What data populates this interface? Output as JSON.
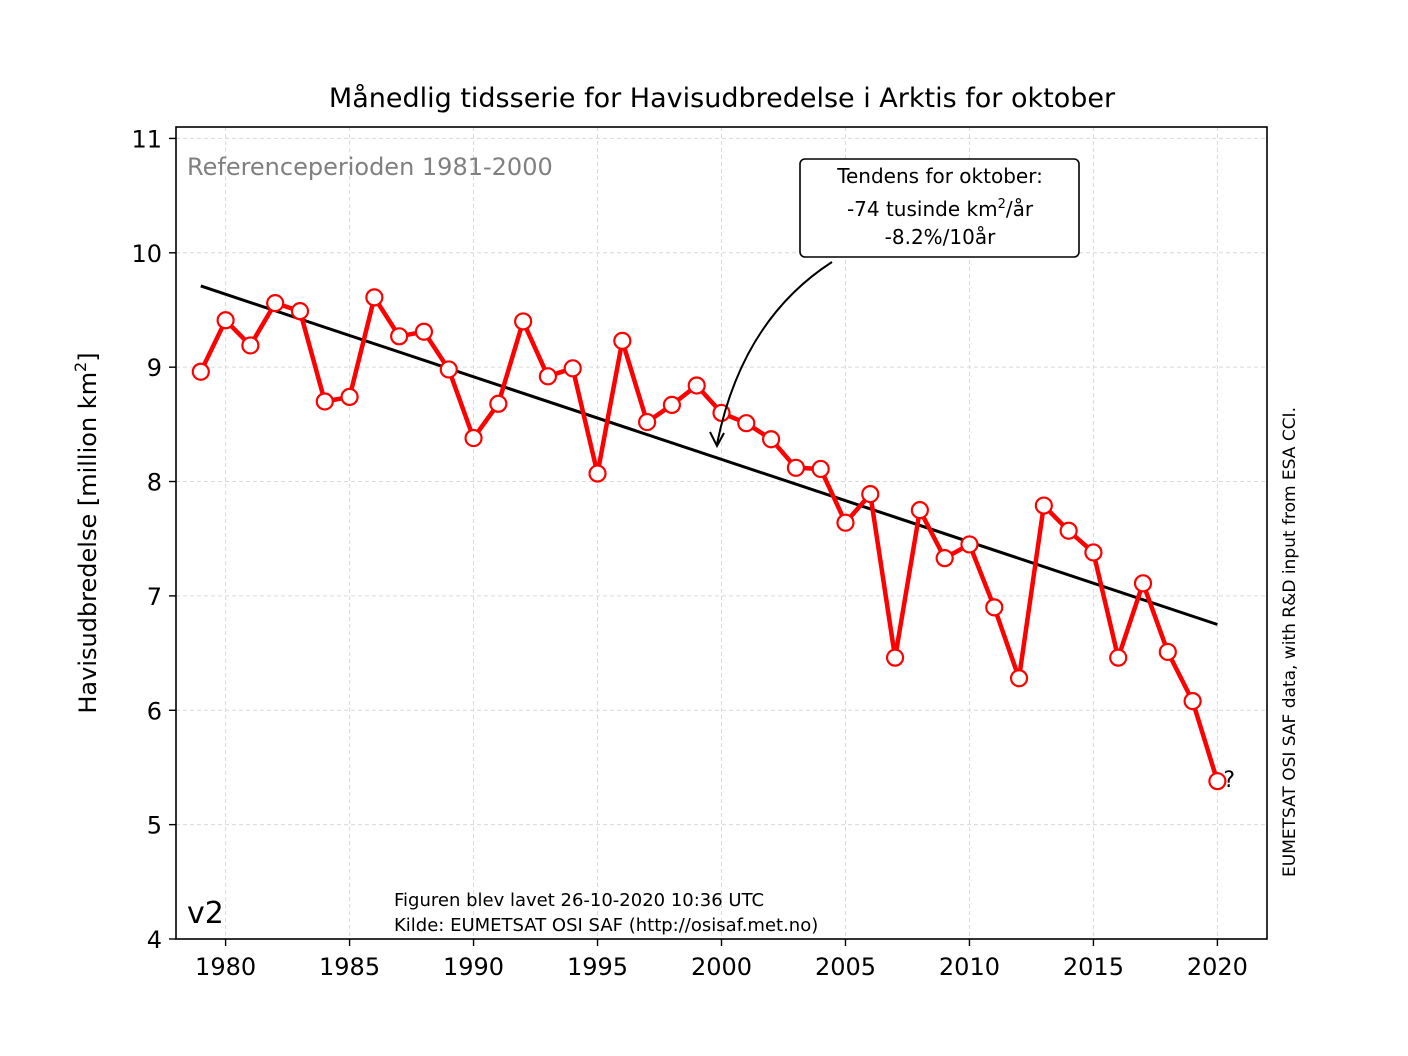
{
  "chart_data": {
    "type": "line",
    "title": "Månedlig tidsserie for Havisudbredelse i Arktis for oktober",
    "ylabel_main": "Havisudbredelse [million km",
    "ylabel_sup": "2",
    "ylabel_tail": "]",
    "xlim": [
      1978,
      2022
    ],
    "ylim": [
      4,
      11.1
    ],
    "x_ticks": [
      "1980",
      "1985",
      "1990",
      "1995",
      "2000",
      "2005",
      "2010",
      "2015",
      "2020"
    ],
    "y_ticks": [
      "4",
      "5",
      "6",
      "7",
      "8",
      "9",
      "10",
      "11"
    ],
    "grid": true,
    "series": [
      {
        "color": "#ff0000",
        "marker_fill": "#ffffff",
        "x": [
          1979,
          1980,
          1981,
          1982,
          1983,
          1984,
          1985,
          1986,
          1987,
          1988,
          1989,
          1990,
          1991,
          1992,
          1993,
          1994,
          1995,
          1996,
          1997,
          1998,
          1999,
          2000,
          2001,
          2002,
          2003,
          2004,
          2005,
          2006,
          2007,
          2008,
          2009,
          2010,
          2011,
          2012,
          2013,
          2014,
          2015,
          2016,
          2017,
          2018,
          2019,
          2020
        ],
        "y": [
          8.96,
          9.41,
          9.19,
          9.56,
          9.49,
          8.7,
          8.74,
          9.61,
          9.27,
          9.31,
          8.98,
          8.38,
          8.68,
          9.4,
          8.92,
          8.99,
          8.07,
          9.23,
          8.52,
          8.67,
          8.84,
          8.6,
          8.51,
          8.37,
          8.12,
          8.11,
          7.64,
          7.89,
          6.46,
          7.75,
          7.33,
          7.45,
          6.9,
          6.28,
          7.79,
          7.57,
          7.38,
          6.46,
          7.11,
          6.51,
          6.08,
          5.38
        ]
      }
    ],
    "trend": {
      "color": "#000000",
      "x": [
        1979,
        2020
      ],
      "y": [
        9.71,
        6.75
      ]
    },
    "last_point_marker": "?",
    "annotations": {
      "reference_period": "Referenceperioden 1981-2000",
      "trend_box_line1": "Tendens for oktober:",
      "trend_box_line2_pre": "-74 tusinde km",
      "trend_box_line2_sup": "2",
      "trend_box_line2_post": "/år",
      "trend_box_line3": "-8.2%/10år",
      "version": "v2",
      "made_line": "Figuren blev lavet 26-10-2020 10:36 UTC",
      "source_line": "Kilde: EUMETSAT OSI SAF (http://osisaf.met.no)",
      "side_credit": "EUMETSAT OSI SAF data, with R&D input from ESA CCI."
    },
    "colors": {
      "reference_text": "#808080",
      "grid": "#d9d9d9"
    }
  }
}
